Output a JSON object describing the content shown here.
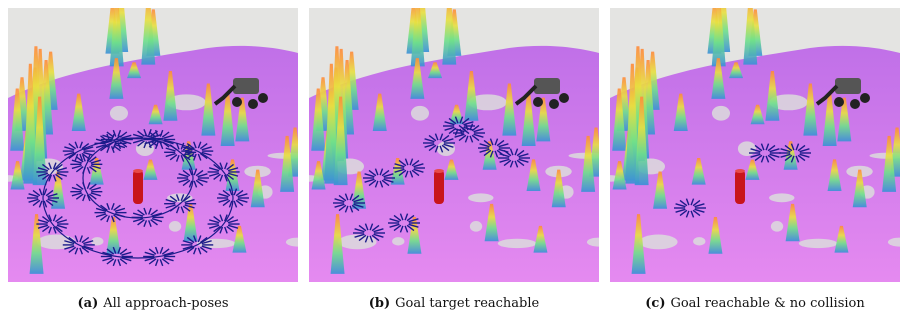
{
  "figure": {
    "panels": [
      {
        "label": "(a)",
        "caption": "All approach-poses"
      },
      {
        "label": "(b)",
        "caption": "Goal target reachable"
      },
      {
        "label": "(c)",
        "caption": "Goal reachable & no collision"
      }
    ]
  }
}
